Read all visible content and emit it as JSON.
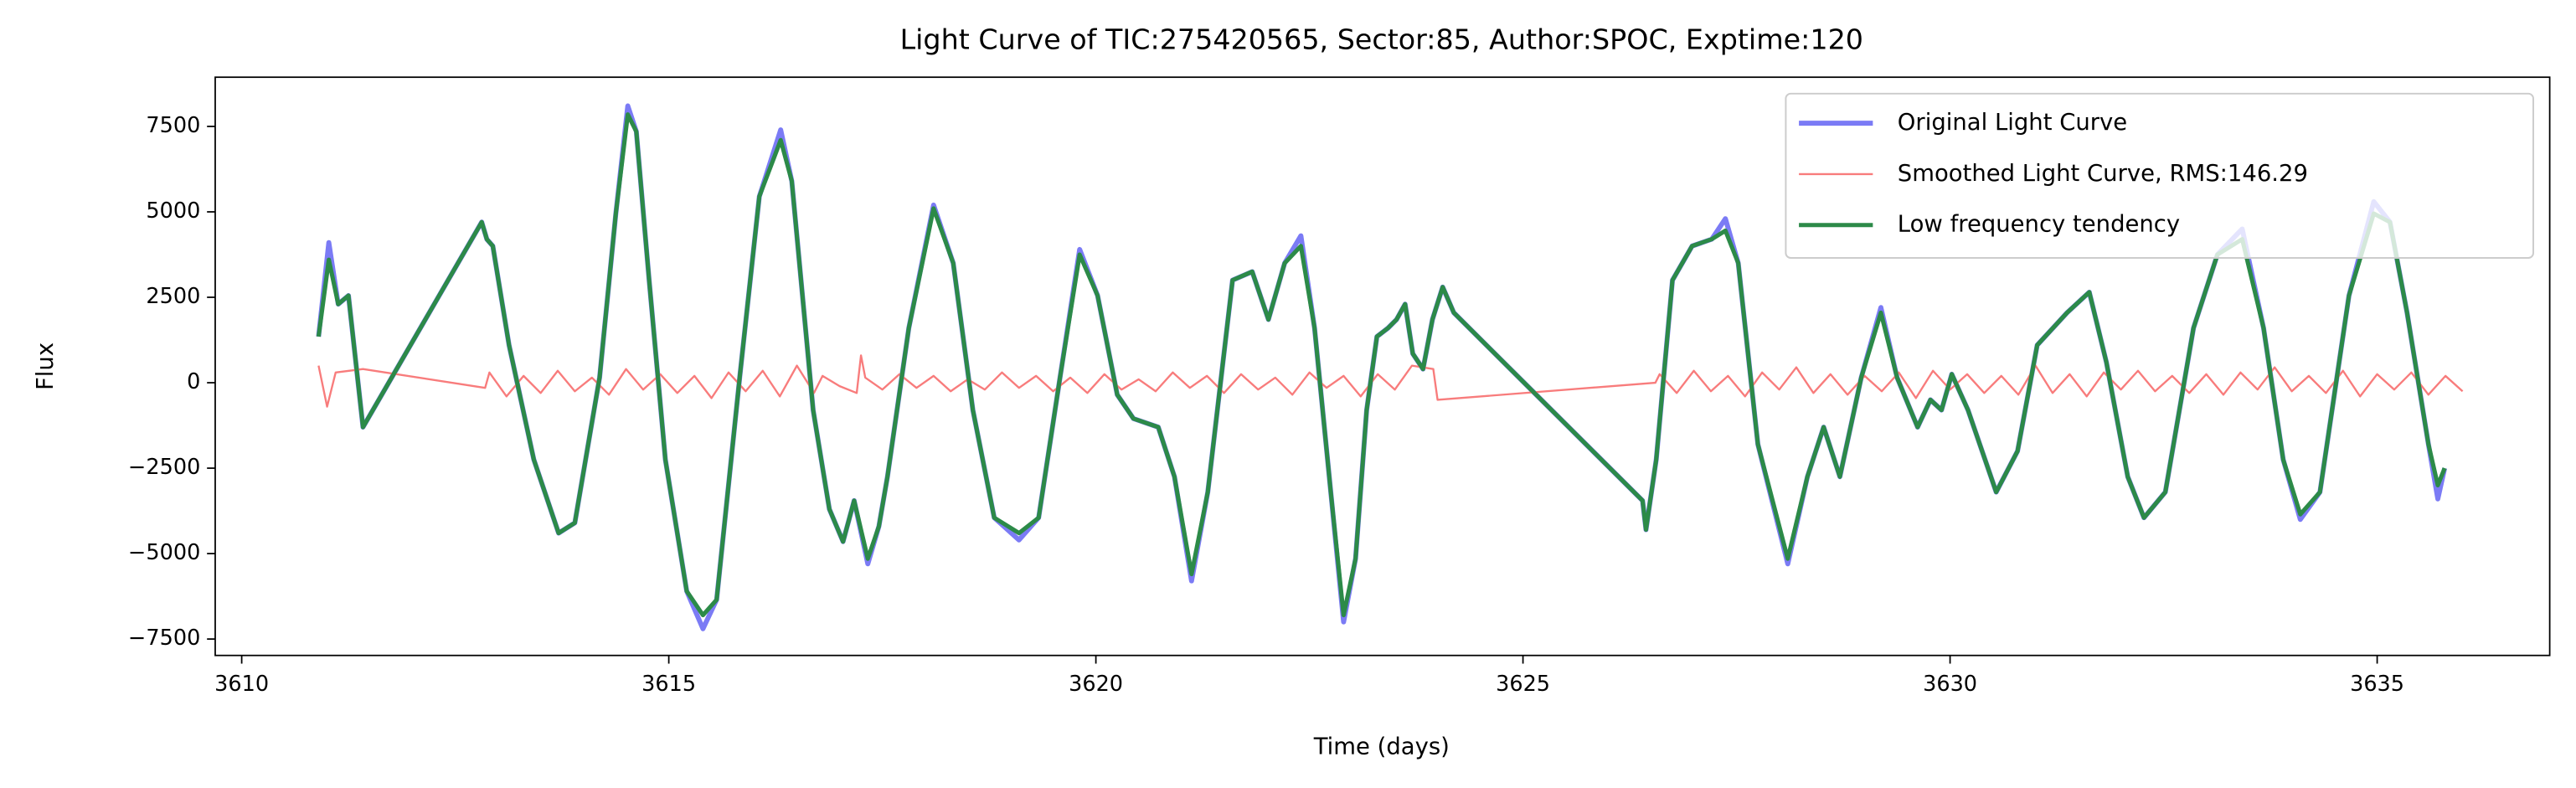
{
  "chart_data": {
    "type": "line",
    "title": "Light Curve of TIC:275420565, Sector:85, Author:SPOC, Exptime:120",
    "xlabel": "Time (days)",
    "ylabel": "Flux",
    "xlim": [
      3609.69,
      3637.02
    ],
    "ylim": [
      -7980,
      8940
    ],
    "xticks": [
      3610,
      3615,
      3620,
      3625,
      3630,
      3635
    ],
    "yticks": [
      {
        "value": -7500,
        "label": "−7500"
      },
      {
        "value": -5000,
        "label": "−5000"
      },
      {
        "value": -2500,
        "label": "−2500"
      },
      0,
      2500,
      5000,
      7500
    ],
    "legend": "upper right",
    "grid": false,
    "x": [
      3610.9,
      3611.02,
      3611.13,
      3611.25,
      3611.42,
      3612.81,
      3612.87,
      3612.94,
      3613.13,
      3613.42,
      3613.71,
      3613.9,
      3614.19,
      3614.38,
      3614.52,
      3614.62,
      3614.77,
      3614.96,
      3615.21,
      3615.4,
      3615.56,
      3615.83,
      3616.06,
      3616.31,
      3616.44,
      3616.69,
      3616.88,
      3617.04,
      3617.17,
      3617.33,
      3617.46,
      3617.56,
      3617.81,
      3618.1,
      3618.33,
      3618.56,
      3618.81,
      3619.1,
      3619.33,
      3619.58,
      3619.81,
      3620.02,
      3620.25,
      3620.44,
      3620.73,
      3620.92,
      3621.12,
      3621.31,
      3621.6,
      3621.83,
      3622.02,
      3622.21,
      3622.4,
      3622.56,
      3622.75,
      3622.9,
      3623.04,
      3623.17,
      3623.29,
      3623.42,
      3623.52,
      3623.62,
      3623.71,
      3623.83,
      3623.94,
      3624.06,
      3624.19,
      3626.4,
      3626.44,
      3626.56,
      3626.75,
      3626.98,
      3627.21,
      3627.37,
      3627.52,
      3627.75,
      3628.1,
      3628.33,
      3628.52,
      3628.71,
      3628.96,
      3629.19,
      3629.38,
      3629.62,
      3629.77,
      3629.9,
      3630.02,
      3630.21,
      3630.54,
      3630.79,
      3631.02,
      3631.37,
      3631.63,
      3631.83,
      3632.08,
      3632.27,
      3632.52,
      3632.85,
      3633.13,
      3633.42,
      3633.67,
      3633.9,
      3634.1,
      3634.33,
      3634.67,
      3634.96,
      3635.15,
      3635.35,
      3635.6,
      3635.71,
      3635.79
    ],
    "series": [
      {
        "name": "Original Light Curve",
        "color": "#7b7bf5",
        "values": [
          1350,
          4100,
          2300,
          2550,
          -1300,
          4700,
          4200,
          4000,
          1100,
          -2250,
          -4400,
          -4100,
          150,
          4950,
          8100,
          7350,
          3000,
          -2250,
          -6100,
          -7200,
          -6350,
          150,
          5450,
          7400,
          5900,
          -800,
          -3700,
          -4650,
          -3450,
          -5300,
          -4200,
          -2750,
          1600,
          5200,
          3500,
          -800,
          -3950,
          -4600,
          -3950,
          150,
          3900,
          2550,
          -350,
          -1050,
          -1300,
          -2750,
          -5800,
          -3200,
          3000,
          3250,
          1850,
          3500,
          4300,
          1600,
          -3200,
          -7000,
          -5150,
          -800,
          1350,
          1600,
          1850,
          2300,
          850,
          400,
          1850,
          2800,
          2050,
          -3450,
          -4300,
          -2250,
          3000,
          4000,
          4200,
          4800,
          3500,
          -1800,
          -5300,
          -2750,
          -1300,
          -2750,
          150,
          2200,
          150,
          -1300,
          -500,
          -800,
          250,
          -800,
          -3200,
          -2000,
          1100,
          2050,
          2650,
          600,
          -2750,
          -3950,
          -3200,
          1600,
          3750,
          4500,
          1600,
          -2250,
          -4000,
          -3200,
          2550,
          5300,
          4700,
          2050,
          -1800,
          -3400,
          -2500
        ]
      },
      {
        "name": "Smoothed Light Curve, RMS:146.29",
        "color": "#f87c7c",
        "x": [
          3610.9,
          3611.0,
          3611.1,
          3611.42,
          3612.85,
          3612.9,
          3613.1,
          3613.3,
          3613.5,
          3613.7,
          3613.9,
          3614.1,
          3614.3,
          3614.5,
          3614.7,
          3614.9,
          3615.1,
          3615.3,
          3615.5,
          3615.7,
          3615.9,
          3616.1,
          3616.3,
          3616.5,
          3616.7,
          3616.8,
          3617.0,
          3617.2,
          3617.25,
          3617.3,
          3617.5,
          3617.7,
          3617.9,
          3618.1,
          3618.3,
          3618.5,
          3618.7,
          3618.9,
          3619.1,
          3619.3,
          3619.5,
          3619.7,
          3619.9,
          3620.1,
          3620.3,
          3620.5,
          3620.7,
          3620.9,
          3621.1,
          3621.3,
          3621.5,
          3621.7,
          3621.9,
          3622.1,
          3622.3,
          3622.5,
          3622.7,
          3622.9,
          3623.1,
          3623.3,
          3623.5,
          3623.6,
          3623.7,
          3623.95,
          3624.0,
          3626.55,
          3626.6,
          3626.8,
          3627.0,
          3627.2,
          3627.4,
          3627.6,
          3627.8,
          3628.0,
          3628.2,
          3628.4,
          3628.6,
          3628.8,
          3629.0,
          3629.2,
          3629.4,
          3629.6,
          3629.8,
          3630.0,
          3630.2,
          3630.4,
          3630.6,
          3630.8,
          3631.0,
          3631.2,
          3631.4,
          3631.6,
          3631.8,
          3632.0,
          3632.2,
          3632.4,
          3632.6,
          3632.8,
          3633.0,
          3633.2,
          3633.4,
          3633.6,
          3633.8,
          3634.0,
          3634.2,
          3634.4,
          3634.6,
          3634.8,
          3635.0,
          3635.2,
          3635.4,
          3635.6,
          3635.8,
          3636.0
        ],
        "values": [
          500,
          -700,
          300,
          400,
          -150,
          300,
          -400,
          200,
          -300,
          350,
          -250,
          150,
          -350,
          400,
          -200,
          250,
          -300,
          200,
          -450,
          300,
          -250,
          350,
          -400,
          500,
          -300,
          200,
          -100,
          -300,
          800,
          150,
          -200,
          250,
          -150,
          200,
          -250,
          100,
          -200,
          300,
          -150,
          200,
          -250,
          150,
          -300,
          250,
          -200,
          100,
          -250,
          300,
          -150,
          200,
          -300,
          250,
          -200,
          150,
          -350,
          300,
          -150,
          200,
          -400,
          250,
          -200,
          150,
          500,
          400,
          -500,
          0,
          250,
          -300,
          350,
          -250,
          200,
          -400,
          300,
          -200,
          450,
          -300,
          250,
          -350,
          200,
          -250,
          300,
          -450,
          350,
          -200,
          250,
          -300,
          200,
          -350,
          500,
          -300,
          250,
          -400,
          300,
          -200,
          350,
          -250,
          200,
          -300,
          250,
          -350,
          300,
          -200,
          450,
          -250,
          200,
          -300,
          350,
          -400,
          250,
          -200,
          300,
          -350,
          200,
          -250
        ]
      },
      {
        "name": "Low frequency tendency",
        "color": "#2c8a48",
        "values": [
          1350,
          3600,
          2300,
          2550,
          -1300,
          4700,
          4200,
          4000,
          1100,
          -2250,
          -4400,
          -4100,
          150,
          4950,
          7850,
          7350,
          3000,
          -2250,
          -6100,
          -6800,
          -6350,
          150,
          5450,
          7100,
          5900,
          -800,
          -3700,
          -4650,
          -3450,
          -5150,
          -4200,
          -2750,
          1600,
          5100,
          3500,
          -800,
          -3950,
          -4400,
          -3950,
          150,
          3750,
          2550,
          -350,
          -1050,
          -1300,
          -2750,
          -5600,
          -3200,
          3000,
          3250,
          1850,
          3500,
          4000,
          1600,
          -3200,
          -6800,
          -5150,
          -800,
          1350,
          1600,
          1850,
          2300,
          850,
          400,
          1850,
          2800,
          2050,
          -3450,
          -4300,
          -2250,
          3000,
          4000,
          4200,
          4450,
          3500,
          -1800,
          -5150,
          -2750,
          -1300,
          -2750,
          150,
          2050,
          150,
          -1300,
          -500,
          -800,
          250,
          -800,
          -3200,
          -2000,
          1100,
          2050,
          2650,
          600,
          -2750,
          -3950,
          -3200,
          1600,
          3750,
          4200,
          1600,
          -2250,
          -3850,
          -3200,
          2550,
          4950,
          4700,
          2050,
          -1800,
          -3000,
          -2500
        ]
      }
    ]
  }
}
